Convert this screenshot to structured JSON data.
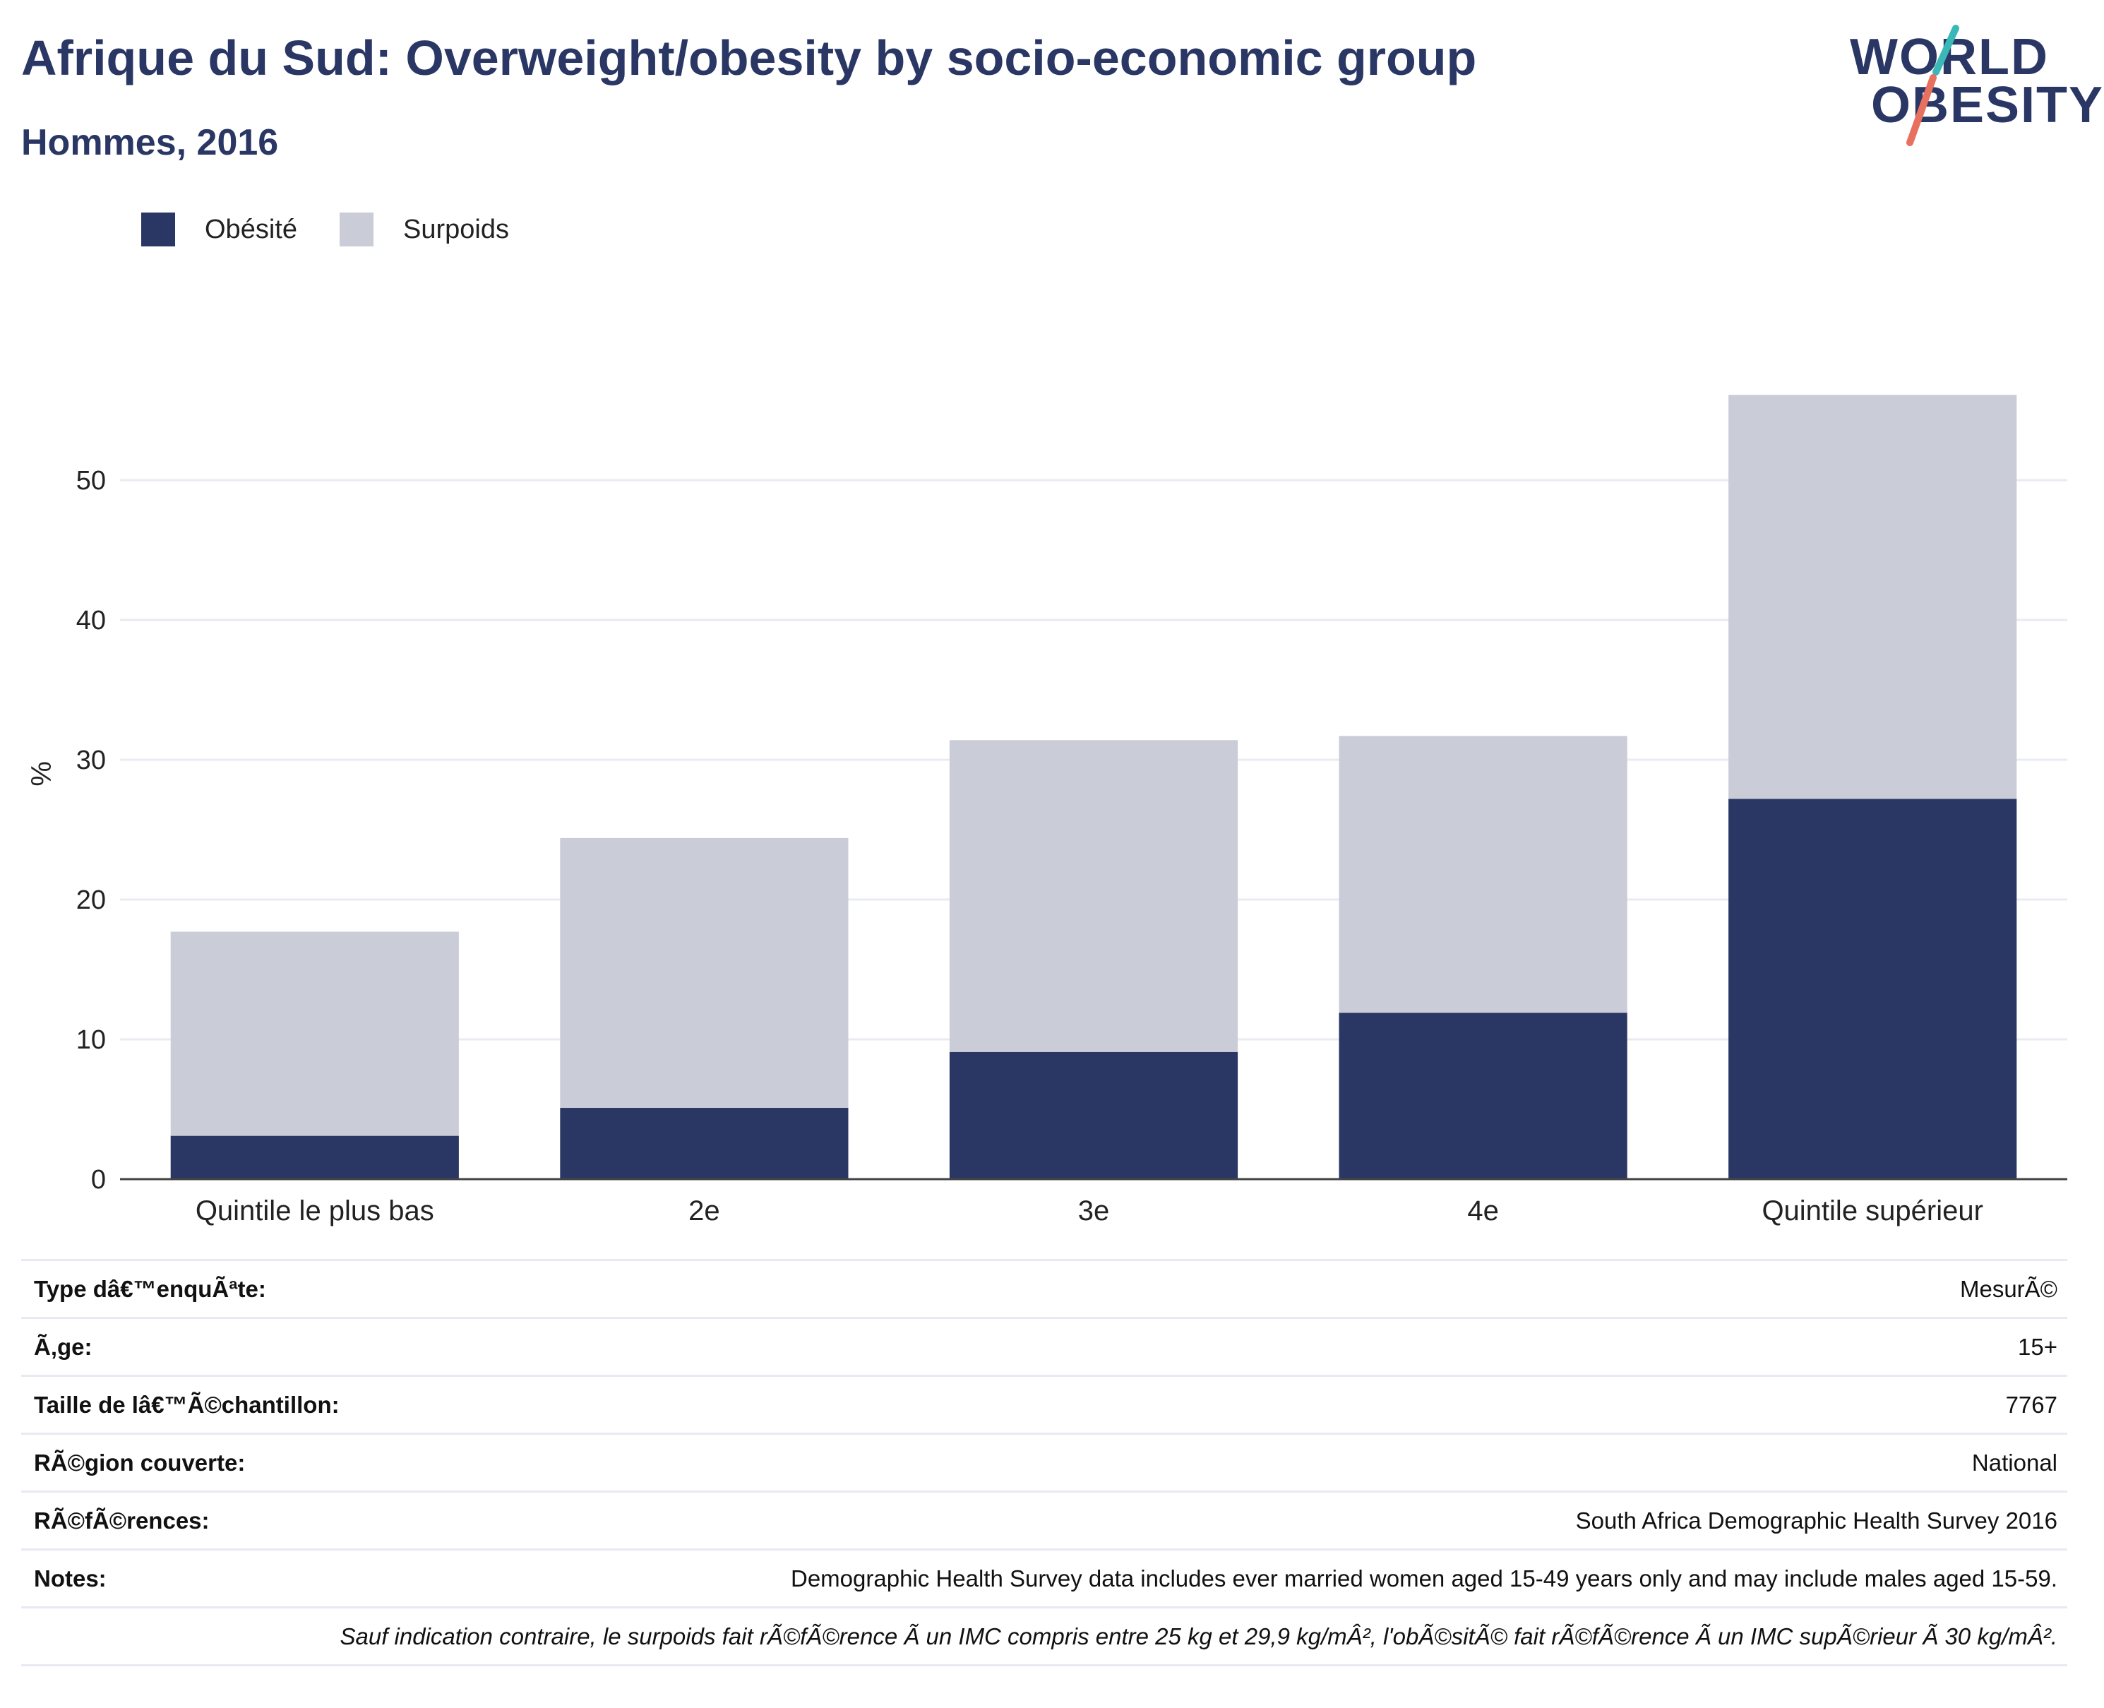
{
  "header": {
    "title": "Afrique du Sud: Overweight/obesity by socio-economic group",
    "subtitle": "Hommes, 2016"
  },
  "logo": {
    "line1": "WORLD",
    "line2": "OBESITY",
    "accent_teal": "#3ab8b8",
    "accent_red": "#e8705e"
  },
  "legend": [
    {
      "label": "Obésité",
      "color": "#2a3764"
    },
    {
      "label": "Surpoids",
      "color": "#cacdd8"
    }
  ],
  "chart_data": {
    "type": "bar",
    "stacked": true,
    "categories": [
      "Quintile le plus bas",
      "2e",
      "3e",
      "4e",
      "Quintile supérieur"
    ],
    "series": [
      {
        "name": "Obésité",
        "color": "#2a3764",
        "values": [
          3.1,
          5.1,
          9.1,
          11.9,
          27.2
        ]
      },
      {
        "name": "Surpoids",
        "color": "#cacdd8",
        "values": [
          14.6,
          19.3,
          22.3,
          19.8,
          28.9
        ]
      }
    ],
    "ylabel": "%",
    "yticks": [
      0,
      10,
      20,
      30,
      40,
      50
    ],
    "ylim": [
      0,
      58
    ],
    "grid": true
  },
  "info": {
    "rows": [
      {
        "label": "Type dâ€™enquÃªte:",
        "value": "MesurÃ©"
      },
      {
        "label": "Ã‚ge:",
        "value": "15+"
      },
      {
        "label": "Taille de lâ€™Ã©chantillon:",
        "value": "7767"
      },
      {
        "label": "RÃ©gion couverte:",
        "value": "National"
      },
      {
        "label": "RÃ©fÃ©rences:",
        "value": "South Africa Demographic Health Survey 2016"
      },
      {
        "label": "Notes:",
        "value": "Demographic Health Survey data includes ever married women aged 15-49 years only and may include males aged 15-59."
      }
    ],
    "footnote": "Sauf indication contraire, le surpoids fait rÃ©fÃ©rence Ã  un IMC compris entre 25 kg et 29,9 kg/mÂ², l'obÃ©sitÃ© fait rÃ©fÃ©rence Ã  un IMC supÃ©rieur Ã  30 kg/mÂ²."
  }
}
